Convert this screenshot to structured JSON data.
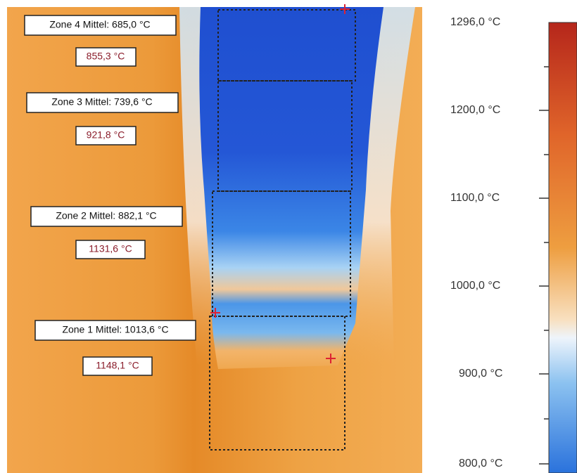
{
  "zones": [
    {
      "label": "Zone 4  Mittel: 685,0 °C",
      "max": "855,3 °C"
    },
    {
      "label": "Zone 3 Mittel: 739,6 °C",
      "max": "921,8 °C"
    },
    {
      "label": "Zone 2 Mittel: 882,1 °C",
      "max": "1131,6 °C"
    },
    {
      "label": "Zone 1 Mittel: 1013,6 °C",
      "max": "1148,1 °C"
    }
  ],
  "scale": {
    "ticks": [
      "1296,0 °C",
      "1200,0 °C",
      "1100,0 °C",
      "1000,0 °C",
      "900,0 °C",
      "800,0 °C"
    ]
  }
}
